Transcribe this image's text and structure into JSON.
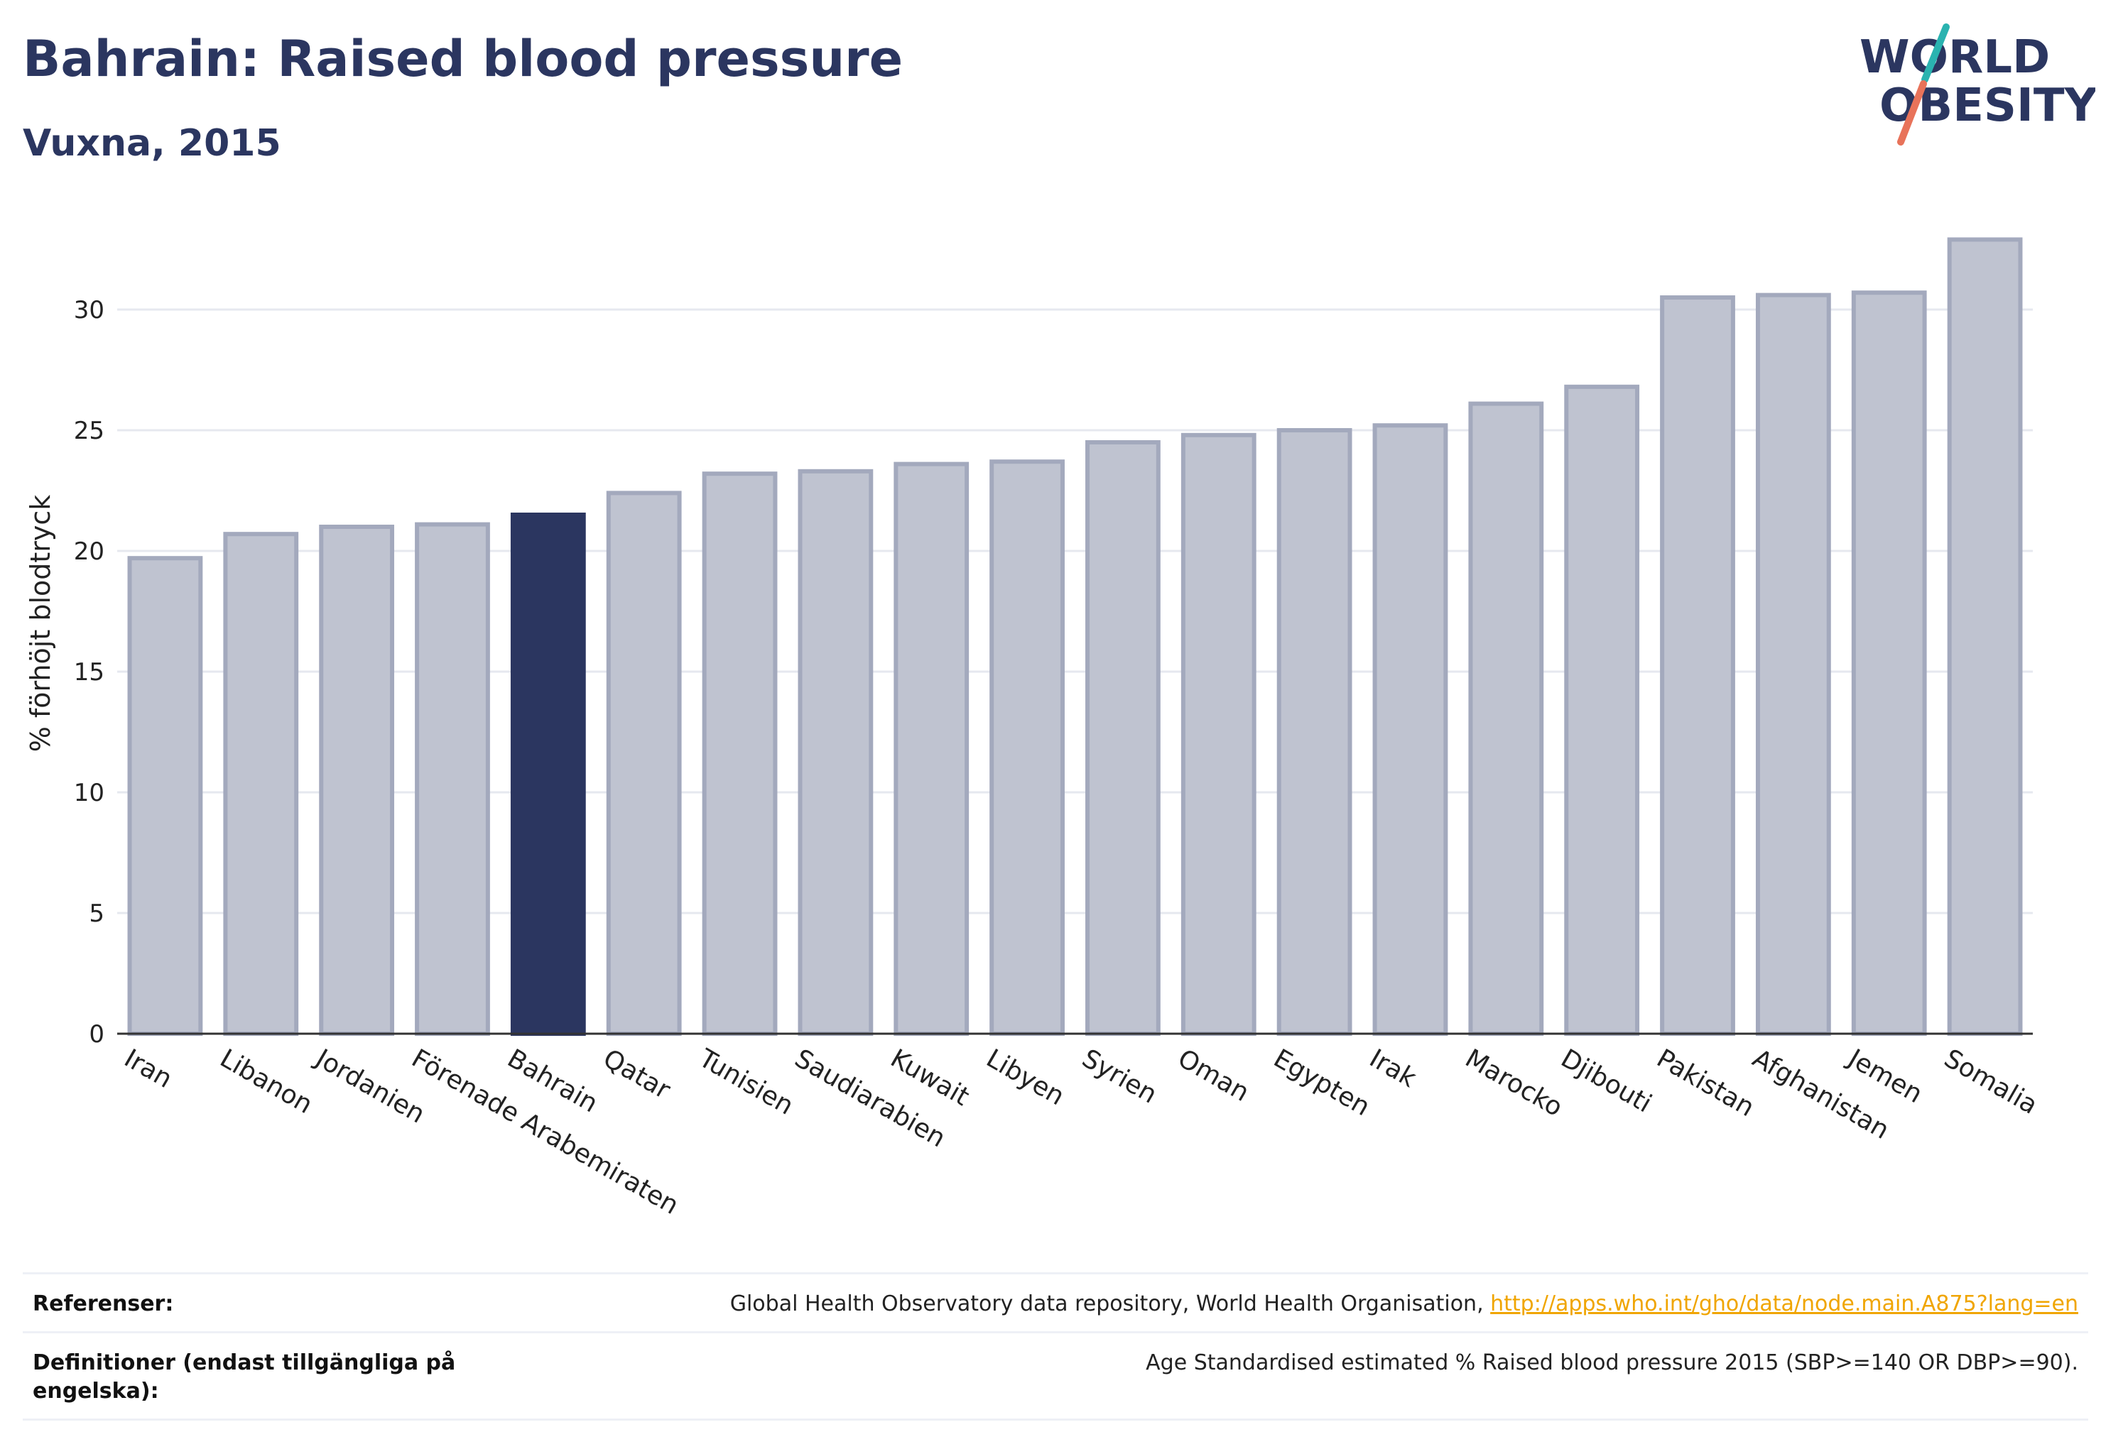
{
  "header": {
    "title": "Bahrain: Raised blood pressure",
    "subtitle": "Vuxna, 2015"
  },
  "logo": {
    "line1": "WORLD",
    "line2": "OBESITY",
    "slash_colors": [
      "#2ab3b0",
      "#e8735a"
    ]
  },
  "colors": {
    "highlight": "#2b3660",
    "bar_fill": "#bfc3d0",
    "bar_stroke": "#a3a9bd",
    "text": "#2b3660"
  },
  "chart_data": {
    "type": "bar",
    "ylabel": "% förhöjt blodtryck",
    "xlabel": "",
    "ylim": [
      0,
      34
    ],
    "yticks": [
      0,
      5,
      10,
      15,
      20,
      25,
      30
    ],
    "grid": true,
    "highlight": "Bahrain",
    "categories": [
      "Iran",
      "Libanon",
      "Jordanien",
      "Förenade Arabemiraten",
      "Bahrain",
      "Qatar",
      "Tunisien",
      "Saudiarabien",
      "Kuwait",
      "Libyen",
      "Syrien",
      "Oman",
      "Egypten",
      "Irak",
      "Marocko",
      "Djibouti",
      "Pakistan",
      "Afghanistan",
      "Jemen",
      "Somalia"
    ],
    "values": [
      19.7,
      20.7,
      21.0,
      21.1,
      21.5,
      22.4,
      23.2,
      23.3,
      23.6,
      23.7,
      24.5,
      24.8,
      25.0,
      25.2,
      26.1,
      26.8,
      30.5,
      30.6,
      30.7,
      32.9
    ]
  },
  "footer": {
    "references_label": "Referenser:",
    "references_text": "Global Health Observatory data repository, World Health Organisation, ",
    "references_link": "http://apps.who.int/gho/data/node.main.A875?lang=en",
    "definitions_label": "Definitioner (endast tillgängliga på engelska):",
    "definitions_text": "Age Standardised estimated % Raised blood pressure 2015 (SBP>=140 OR DBP>=90)."
  }
}
